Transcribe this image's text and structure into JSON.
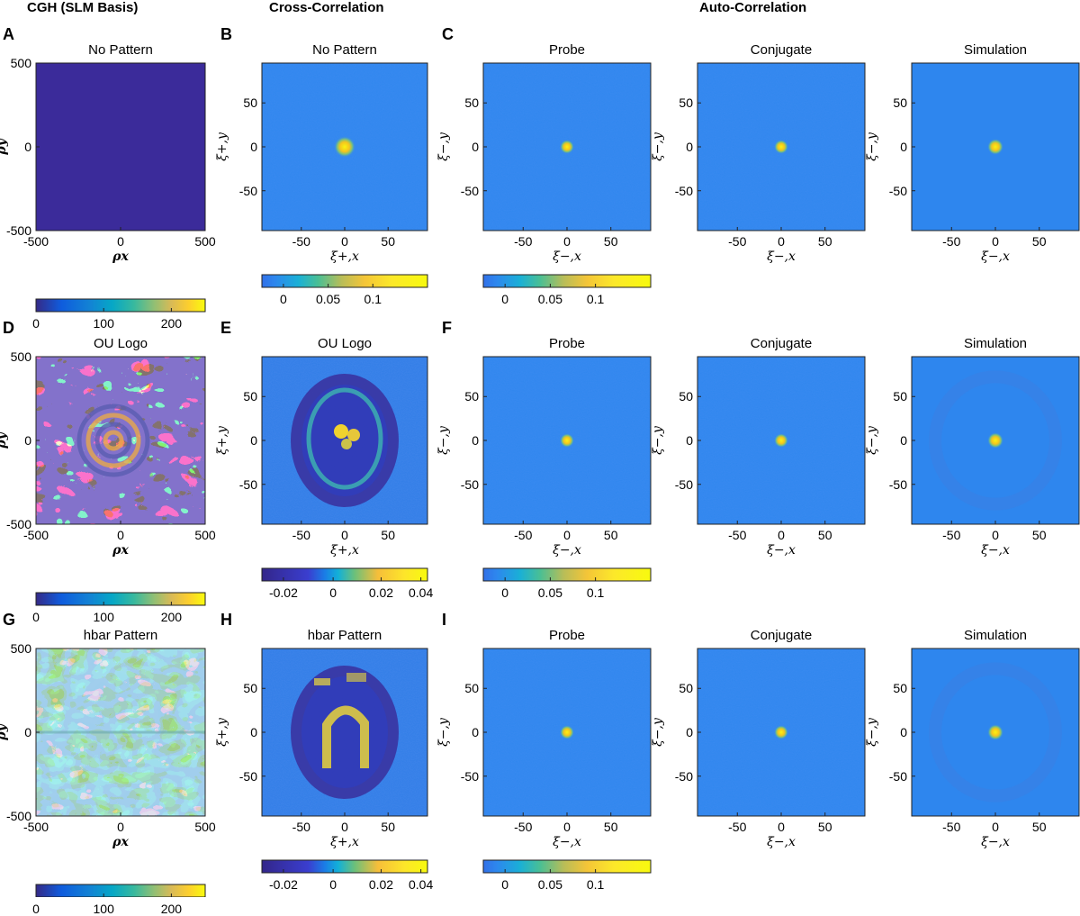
{
  "headers": {
    "col1": "CGH (SLM Basis)",
    "col2": "Cross-Correlation",
    "col3": "Auto-Correlation"
  },
  "rows": [
    {
      "cgh": {
        "label": "A",
        "title": "No Pattern",
        "pattern": "none"
      },
      "cross": {
        "label": "B",
        "title": "No Pattern",
        "pattern": "spot"
      },
      "auto": {
        "label": "C",
        "titles": [
          "Probe",
          "Conjugate",
          "Simulation"
        ]
      },
      "colorbars": {
        "cgh": [
          "0",
          "100",
          "200"
        ],
        "cross": [
          "0",
          "0.05",
          "0.1"
        ],
        "auto": [
          "0",
          "0.05",
          "0.1"
        ]
      }
    },
    {
      "cgh": {
        "label": "D",
        "title": "OU Logo",
        "pattern": "ou"
      },
      "cross": {
        "label": "E",
        "title": "OU Logo",
        "pattern": "ou-logo"
      },
      "auto": {
        "label": "F",
        "titles": [
          "Probe",
          "Conjugate",
          "Simulation"
        ]
      },
      "colorbars": {
        "cgh": [
          "0",
          "100",
          "200"
        ],
        "cross": [
          "-0.02",
          "0",
          "0.02",
          "0.04"
        ],
        "auto": [
          "0",
          "0.05",
          "0.1"
        ]
      }
    },
    {
      "cgh": {
        "label": "G",
        "title": "hbar Pattern",
        "pattern": "hbar"
      },
      "cross": {
        "label": "H",
        "title": "hbar Pattern",
        "pattern": "hbar-logo"
      },
      "auto": {
        "label": "I",
        "titles": [
          "Probe",
          "Conjugate",
          "Simulation"
        ]
      },
      "colorbars": {
        "cgh": [
          "0",
          "100",
          "200"
        ],
        "cross": [
          "-0.02",
          "0",
          "0.02",
          "0.04"
        ],
        "auto": [
          "0",
          "0.05",
          "0.1"
        ]
      }
    }
  ],
  "axes": {
    "cgh_ticks_x": [
      "-500",
      "0",
      "500"
    ],
    "cgh_ticks_y": [
      "500",
      "0",
      "-500"
    ],
    "cgh_xlabel": "ρx",
    "cgh_ylabel": "ρy",
    "corr_ticks_x": [
      "-50",
      "0",
      "50"
    ],
    "corr_ticks_y": [
      "50",
      "0",
      "-50"
    ],
    "cross_xlabel": "ξ+,x",
    "cross_ylabel": "ξ+,y",
    "auto_xlabel": "ξ−,x",
    "auto_ylabel": "ξ−,y"
  },
  "colors": {
    "background_blue": "#2e86ee",
    "cgh_dark": "#3b2b9a",
    "cgh_yellow": "#f5e628"
  }
}
